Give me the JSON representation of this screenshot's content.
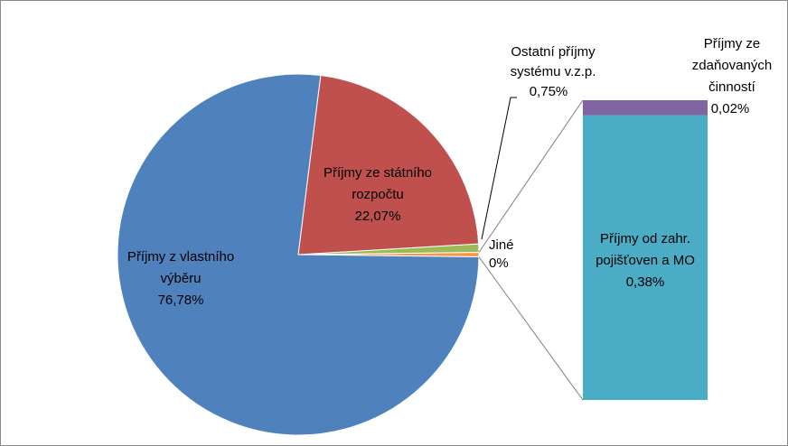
{
  "chart_data": {
    "type": "pie-of-bar",
    "categories": [
      "Příjmy z vlastního výběru",
      "Příjmy ze státního rozpočtu",
      "Ostatní příjmy systému v.z.p.",
      "Jiné"
    ],
    "values": [
      76.78,
      22.07,
      0.75,
      0
    ],
    "value_labels": [
      "76,78%",
      "22,07%",
      "0,75%",
      "0%"
    ],
    "colors": [
      "#4f81bd",
      "#c0504d",
      "#9bbb59",
      "#f79646"
    ],
    "secondary": {
      "categories": [
        "Příjmy od zahr. pojišťoven a MO",
        "Příjmy ze zdaňovaných činností"
      ],
      "values": [
        0.38,
        0.02
      ],
      "value_labels": [
        "0,38%",
        "0,02%"
      ],
      "colors": [
        "#4bacc6",
        "#8064a2"
      ]
    }
  }
}
